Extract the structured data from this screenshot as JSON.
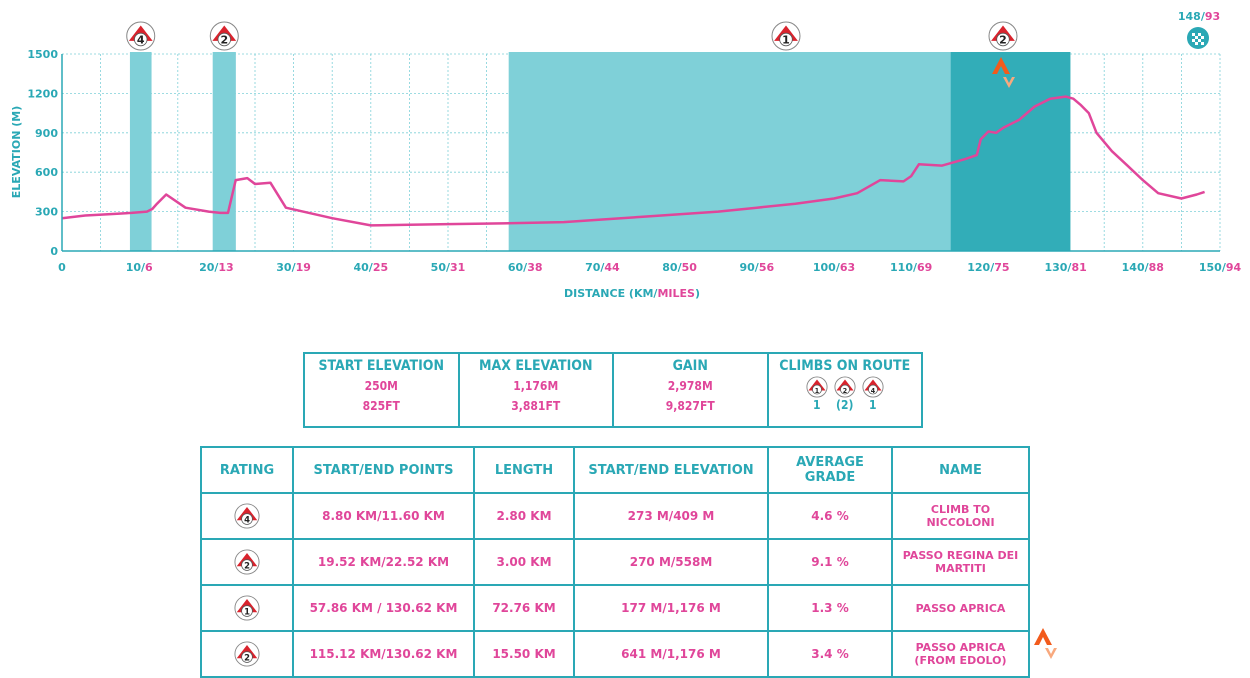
{
  "chart_data": {
    "type": "area",
    "xlabel_parts": [
      "DISTANCE (KM/",
      "MILES",
      ")"
    ],
    "ylabel": "ELEVATION (M)",
    "ylim": [
      0,
      1500
    ],
    "xlim": [
      0,
      150
    ],
    "grid": true,
    "y_ticks": [
      "0",
      "300",
      "600",
      "900",
      "1200",
      "1500"
    ],
    "x_ticks": [
      {
        "km": "0",
        "mi": ""
      },
      {
        "km": "10",
        "mi": "6"
      },
      {
        "km": "20",
        "mi": "13"
      },
      {
        "km": "30",
        "mi": "19"
      },
      {
        "km": "40",
        "mi": "25"
      },
      {
        "km": "50",
        "mi": "31"
      },
      {
        "km": "60",
        "mi": "38"
      },
      {
        "km": "70",
        "mi": "44"
      },
      {
        "km": "80",
        "mi": "50"
      },
      {
        "km": "90",
        "mi": "56"
      },
      {
        "km": "100",
        "mi": "63"
      },
      {
        "km": "110",
        "mi": "69"
      },
      {
        "km": "120",
        "mi": "75"
      },
      {
        "km": "130",
        "mi": "81"
      },
      {
        "km": "140",
        "mi": "88"
      },
      {
        "km": "150",
        "mi": "94"
      }
    ],
    "end_label": {
      "km": "148",
      "mi": "93"
    },
    "profile": {
      "x": [
        0,
        3,
        6,
        9,
        11,
        11.7,
        12.3,
        13.5,
        16,
        19,
        20.5,
        21.5,
        22.5,
        24,
        25,
        27,
        29,
        35,
        40,
        45,
        50,
        57,
        65,
        70,
        75,
        80,
        85,
        90,
        95,
        100,
        103,
        106,
        109,
        110,
        111,
        114,
        117,
        118.5,
        119,
        120,
        121,
        122,
        124,
        126,
        128,
        130,
        131,
        132,
        133,
        134,
        136,
        138,
        140,
        142,
        145,
        147,
        148
      ],
      "y": [
        250,
        270,
        280,
        290,
        300,
        320,
        360,
        430,
        330,
        300,
        290,
        290,
        540,
        555,
        510,
        520,
        330,
        250,
        195,
        200,
        205,
        210,
        220,
        240,
        260,
        280,
        300,
        330,
        360,
        400,
        440,
        540,
        530,
        570,
        660,
        650,
        700,
        730,
        850,
        910,
        900,
        940,
        1000,
        1100,
        1160,
        1176,
        1160,
        1110,
        1050,
        900,
        760,
        650,
        540,
        440,
        400,
        430,
        450
      ]
    },
    "climb_zones": [
      {
        "rating": "4",
        "start_km": 8.8,
        "end_km": 11.6
      },
      {
        "rating": "2",
        "start_km": 19.52,
        "end_km": 22.52
      },
      {
        "rating": "1",
        "start_km": 57.86,
        "end_km": 130.62
      },
      {
        "rating": "2",
        "start_km": 115.12,
        "end_km": 130.62
      }
    ],
    "colors": {
      "line": "#e0469a",
      "zone": "#7fd0d8",
      "zone_dark": "#2aa8b5",
      "grid": "#7fd0d8",
      "axis": "#2aa8b5",
      "label": "#2aa8b5",
      "miles": "#e0469a"
    }
  },
  "summary": {
    "headers": [
      "START ELEVATION",
      "MAX ELEVATION",
      "GAIN",
      "CLIMBS ON ROUTE"
    ],
    "metric": [
      "250M",
      "1,176M",
      "2,978M"
    ],
    "imperial": [
      "825FT",
      "3,881FT",
      "9,827FT"
    ],
    "climbs": [
      {
        "rating": "1",
        "count": "1"
      },
      {
        "rating": "2",
        "count": "(2)"
      },
      {
        "rating": "4",
        "count": "1"
      }
    ]
  },
  "climbs_table": {
    "headers": [
      "RATING",
      "START/END POINTS",
      "LENGTH",
      "START/END ELEVATION",
      "AVERAGE GRADE",
      "NAME"
    ],
    "rows": [
      {
        "rating": "4",
        "points": "8.80 KM/11.60 KM",
        "length": "2.80 KM",
        "elevation": "273 M/409 M",
        "grade": "4.6 %",
        "name": "CLIMB TO NICCOLONI",
        "strava": false
      },
      {
        "rating": "2",
        "points": "19.52 KM/22.52 KM",
        "length": "3.00 KM",
        "elevation": "270 M/558M",
        "grade": "9.1 %",
        "name": "PASSO REGINA DEI MARTITI",
        "strava": false
      },
      {
        "rating": "1",
        "points": "57.86 KM / 130.62 KM",
        "length": "72.76 KM",
        "elevation": "177 M/1,176 M",
        "grade": "1.3 %",
        "name": "PASSO APRICA",
        "strava": false
      },
      {
        "rating": "2",
        "points": "115.12 KM/130.62 KM",
        "length": "15.50 KM",
        "elevation": "641 M/1,176 M",
        "grade": "3.4 %",
        "name": "PASSO APRICA (FROM EDOLO)",
        "strava": true
      }
    ]
  },
  "icons": {
    "climb_badge": "mountain-badge-icon",
    "finish": "checkered-flag-icon",
    "strava": "strava-icon"
  }
}
